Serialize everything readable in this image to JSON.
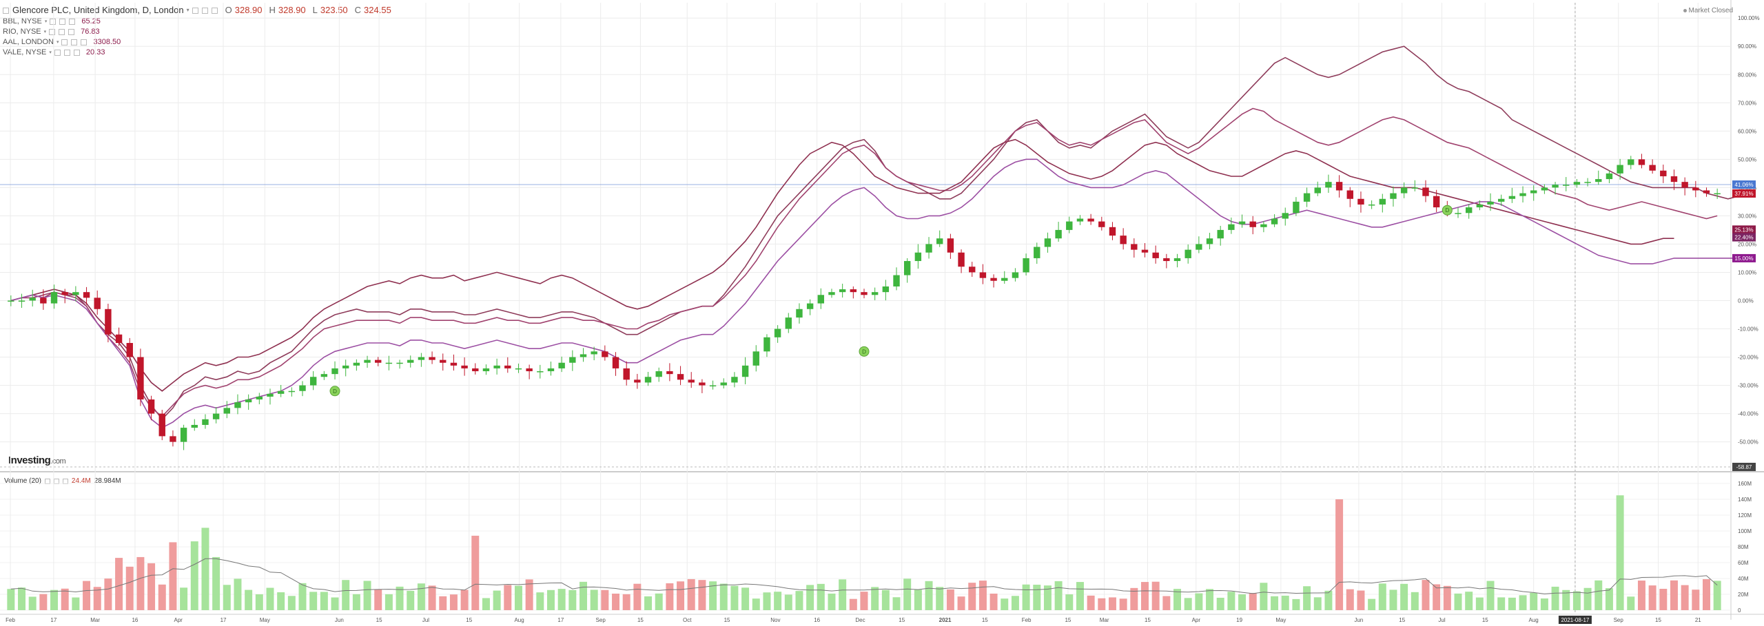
{
  "header": {
    "title": "Glencore PLC, United Kingdom, D, London",
    "ohlc": [
      {
        "label": "O",
        "value": "328.90"
      },
      {
        "label": "H",
        "value": "328.90"
      },
      {
        "label": "L",
        "value": "323.50"
      },
      {
        "label": "C",
        "value": "324.55"
      }
    ],
    "market_status": "Market Closed"
  },
  "comparisons": [
    {
      "symbol": "BBL, NYSE",
      "value": "65.25"
    },
    {
      "symbol": "RIO, NYSE",
      "value": "76.83"
    },
    {
      "symbol": "AAL, LONDON",
      "value": "3308.50"
    },
    {
      "symbol": "VALE, NYSE",
      "value": "20.33"
    }
  ],
  "volume_legend": {
    "label": "Volume (20)",
    "value1": "24.4M",
    "value2": "28.984M"
  },
  "logo": {
    "name": "Investing",
    "domain": ".com"
  },
  "colors": {
    "up": "#3eb53e",
    "down": "#c0162b",
    "compare": "#8e3b74",
    "crosshair": "#6f8fd8",
    "vol_up": "#a6e39b",
    "vol_down": "#ef9c9c"
  },
  "chart_data": {
    "type": "line",
    "title": "Glencore PLC, United Kingdom, D, London",
    "y_axis_labels": [
      "100.00%",
      "90.00%",
      "80.00%",
      "70.00%",
      "60.00%",
      "50.00%",
      "40.00%",
      "30.00%",
      "20.00%",
      "10.00%",
      "0.00%",
      "-10.00%",
      "-20.00%",
      "-30.00%",
      "-40.00%",
      "-50.00%"
    ],
    "ylim": [
      -58.87,
      102
    ],
    "price_tags": [
      {
        "text": "41.06%",
        "value": 41.06,
        "color": "#4a78d1"
      },
      {
        "text": "37.91%",
        "value": 37.91,
        "color": "#c0162b"
      },
      {
        "text": "25.13%",
        "value": 25.13,
        "color": "#8e1a48"
      },
      {
        "text": "22.40%",
        "value": 22.4,
        "color": "#7c2563"
      },
      {
        "text": "15.00%",
        "value": 15.0,
        "color": "#8e1a8e"
      },
      {
        "text": "-58.87",
        "value": -58.87,
        "color": "#444"
      }
    ],
    "x_tick_labels": [
      "Feb",
      "17",
      "Mar",
      "16",
      "Apr",
      "17",
      "May",
      "Jun",
      "15",
      "Jul",
      "15",
      "Aug",
      "17",
      "Sep",
      "15",
      "Oct",
      "15",
      "Nov",
      "16",
      "Dec",
      "15",
      "2021",
      "15",
      "Feb",
      "15",
      "Mar",
      "15",
      "Apr",
      "19",
      "May",
      "Jun",
      "15",
      "Jul",
      "15",
      "Aug",
      "2021-08-17",
      "Sep",
      "15",
      "21"
    ],
    "x_tick_fracs": [
      0.006,
      0.031,
      0.055,
      0.078,
      0.103,
      0.129,
      0.153,
      0.196,
      0.219,
      0.246,
      0.271,
      0.3,
      0.324,
      0.347,
      0.37,
      0.397,
      0.42,
      0.448,
      0.472,
      0.497,
      0.521,
      0.546,
      0.569,
      0.593,
      0.617,
      0.638,
      0.663,
      0.691,
      0.716,
      0.74,
      0.785,
      0.81,
      0.833,
      0.858,
      0.886,
      0.91,
      0.935,
      0.958,
      0.981
    ],
    "x_highlight": "2021-08-17",
    "x_highlight_frac": 0.91,
    "volume_axis_labels": [
      "160M",
      "140M",
      "120M",
      "100M",
      "80M",
      "60M",
      "40M",
      "20M",
      "0"
    ],
    "volume_ylim": [
      0,
      160
    ],
    "series": [
      {
        "name": "Glencore PLC",
        "values": [
          0,
          0,
          1,
          -1,
          3,
          2,
          3,
          1,
          -3,
          -12,
          -15,
          -20,
          -35,
          -40,
          -48,
          -50,
          -45,
          -44,
          -42,
          -40,
          -38,
          -36,
          -35,
          -34,
          -33,
          -32,
          -32,
          -30,
          -27,
          -26,
          -24,
          -23,
          -22,
          -21,
          -22,
          -22,
          -22,
          -21,
          -20,
          -21,
          -22,
          -23,
          -24,
          -25,
          -24,
          -23,
          -24,
          -24,
          -25,
          -25,
          -24,
          -22,
          -20,
          -19,
          -18,
          -20,
          -24,
          -28,
          -29,
          -27,
          -25,
          -26,
          -28,
          -29,
          -30,
          -30,
          -29,
          -27,
          -23,
          -18,
          -13,
          -10,
          -6,
          -3,
          -1,
          2,
          3,
          4,
          3,
          2,
          3,
          5,
          9,
          14,
          17,
          20,
          22,
          17,
          12,
          10,
          8,
          7,
          8,
          10,
          15,
          19,
          22,
          25,
          28,
          29,
          28,
          26,
          23,
          20,
          18,
          17,
          15,
          14,
          15,
          18,
          20,
          22,
          25,
          27,
          28,
          26,
          27,
          29,
          31,
          35,
          38,
          40,
          42,
          39,
          36,
          34,
          34,
          36,
          38,
          40,
          40,
          37,
          33,
          31,
          31,
          33,
          34,
          35,
          36,
          37,
          38,
          39,
          40,
          41,
          41,
          42,
          42,
          43,
          45,
          48,
          50,
          48,
          46,
          44,
          42,
          40,
          39,
          38,
          38
        ]
      },
      {
        "name": "BBL, NYSE",
        "values": [
          0,
          1,
          2,
          1,
          3,
          2,
          2,
          -2,
          -8,
          -12,
          -15,
          -20,
          -30,
          -37,
          -42,
          -38,
          -32,
          -30,
          -27,
          -28,
          -27,
          -25,
          -26,
          -25,
          -22,
          -20,
          -18,
          -14,
          -10,
          -7,
          -5,
          -4,
          -3,
          -4,
          -4,
          -4,
          -5,
          -3,
          -3,
          -4,
          -4,
          -4,
          -5,
          -5,
          -4,
          -3,
          -4,
          -5,
          -6,
          -6,
          -5,
          -4,
          -4,
          -5,
          -6,
          -8,
          -10,
          -12,
          -12,
          -10,
          -8,
          -6,
          -4,
          -3,
          -2,
          -2,
          2,
          7,
          12,
          18,
          24,
          30,
          34,
          38,
          42,
          46,
          50,
          54,
          56,
          57,
          53,
          47,
          44,
          42,
          40,
          38,
          36,
          36,
          38,
          42,
          46,
          50,
          55,
          60,
          63,
          64,
          60,
          56,
          54,
          55,
          54,
          57,
          60,
          62,
          64,
          66,
          62,
          58,
          56,
          54,
          56,
          60,
          64,
          68,
          72,
          76,
          80,
          84,
          86,
          84,
          82,
          80,
          79,
          80,
          82,
          84,
          86,
          88,
          89,
          90,
          87,
          84,
          80,
          77,
          75,
          74,
          72,
          70,
          68,
          64,
          62,
          60,
          58,
          56,
          54,
          52,
          50,
          48,
          46,
          44,
          42,
          41,
          40,
          40,
          40,
          40,
          40,
          38,
          37,
          36,
          37
        ]
      },
      {
        "name": "RIO, NYSE",
        "values": [
          0,
          1,
          1,
          2,
          3,
          2,
          1,
          -2,
          -8,
          -13,
          -17,
          -22,
          -32,
          -38,
          -41,
          -37,
          -33,
          -31,
          -30,
          -31,
          -30,
          -28,
          -28,
          -27,
          -25,
          -23,
          -20,
          -17,
          -13,
          -10,
          -9,
          -8,
          -7,
          -7,
          -7,
          -7,
          -8,
          -6,
          -6,
          -7,
          -7,
          -7,
          -8,
          -8,
          -7,
          -6,
          -7,
          -7,
          -8,
          -8,
          -7,
          -6,
          -6,
          -7,
          -7,
          -8,
          -9,
          -10,
          -10,
          -8,
          -7,
          -5,
          -4,
          -3,
          -2,
          -2,
          1,
          5,
          9,
          14,
          20,
          26,
          31,
          36,
          40,
          44,
          48,
          52,
          54,
          55,
          52,
          47,
          44,
          42,
          41,
          40,
          39,
          39,
          41,
          44,
          48,
          52,
          56,
          60,
          62,
          63,
          60,
          57,
          55,
          56,
          55,
          57,
          59,
          61,
          63,
          64,
          60,
          56,
          54,
          52,
          54,
          57,
          60,
          63,
          66,
          68,
          67,
          64,
          62,
          60,
          58,
          56,
          55,
          56,
          58,
          60,
          62,
          64,
          65,
          64,
          62,
          60,
          58,
          56,
          55,
          54,
          52,
          50,
          48,
          46,
          44,
          42,
          40,
          38,
          37,
          36,
          34,
          33,
          32,
          33,
          34,
          35,
          34,
          33,
          32,
          31,
          30,
          29,
          30
        ]
      },
      {
        "name": "AAL, LONDON",
        "values": [
          0,
          1,
          2,
          3,
          4,
          3,
          2,
          -1,
          -6,
          -10,
          -14,
          -18,
          -24,
          -29,
          -32,
          -29,
          -26,
          -24,
          -22,
          -23,
          -22,
          -20,
          -20,
          -19,
          -17,
          -15,
          -13,
          -10,
          -6,
          -3,
          -1,
          1,
          3,
          5,
          6,
          7,
          6,
          8,
          9,
          8,
          8,
          9,
          7,
          8,
          9,
          10,
          9,
          8,
          7,
          6,
          8,
          9,
          8,
          6,
          4,
          2,
          0,
          -2,
          -3,
          -2,
          0,
          2,
          4,
          6,
          8,
          10,
          13,
          17,
          21,
          26,
          32,
          38,
          43,
          48,
          52,
          54,
          56,
          55,
          52,
          48,
          44,
          42,
          40,
          39,
          38,
          38,
          38,
          40,
          42,
          46,
          50,
          54,
          56,
          57,
          55,
          52,
          49,
          47,
          45,
          44,
          43,
          44,
          46,
          49,
          52,
          55,
          56,
          55,
          52,
          50,
          48,
          46,
          45,
          44,
          44,
          46,
          48,
          50,
          52,
          53,
          52,
          50,
          48,
          46,
          44,
          43,
          42,
          41,
          40,
          40,
          40,
          39,
          38,
          37,
          36,
          35,
          34,
          33,
          32,
          31,
          30,
          29,
          28,
          27,
          26,
          25,
          24,
          23,
          22,
          21,
          20,
          20,
          21,
          22,
          22
        ]
      },
      {
        "name": "VALE, NYSE",
        "values": [
          0,
          1,
          2,
          1,
          2,
          1,
          0,
          -3,
          -8,
          -13,
          -18,
          -23,
          -35,
          -42,
          -45,
          -43,
          -40,
          -38,
          -37,
          -38,
          -37,
          -36,
          -35,
          -34,
          -33,
          -32,
          -30,
          -27,
          -23,
          -20,
          -18,
          -17,
          -16,
          -15,
          -15,
          -15,
          -16,
          -14,
          -14,
          -15,
          -15,
          -16,
          -17,
          -16,
          -15,
          -14,
          -15,
          -16,
          -17,
          -17,
          -16,
          -15,
          -15,
          -16,
          -17,
          -18,
          -20,
          -22,
          -22,
          -20,
          -18,
          -16,
          -14,
          -13,
          -12,
          -12,
          -9,
          -5,
          -1,
          4,
          9,
          14,
          18,
          22,
          26,
          30,
          34,
          37,
          39,
          40,
          37,
          33,
          30,
          29,
          29,
          30,
          30,
          31,
          33,
          36,
          40,
          44,
          47,
          49,
          50,
          50,
          47,
          44,
          42,
          41,
          40,
          40,
          40,
          41,
          43,
          45,
          46,
          45,
          42,
          39,
          36,
          33,
          30,
          28,
          27,
          27,
          28,
          29,
          30,
          31,
          32,
          31,
          30,
          29,
          28,
          27,
          26,
          26,
          27,
          28,
          29,
          30,
          31,
          32,
          33,
          34,
          35,
          35,
          34,
          32,
          30,
          28,
          26,
          24,
          22,
          20,
          18,
          16,
          15,
          14,
          13,
          13,
          13,
          14,
          15,
          15,
          15,
          15,
          15,
          15,
          15
        ]
      }
    ]
  }
}
